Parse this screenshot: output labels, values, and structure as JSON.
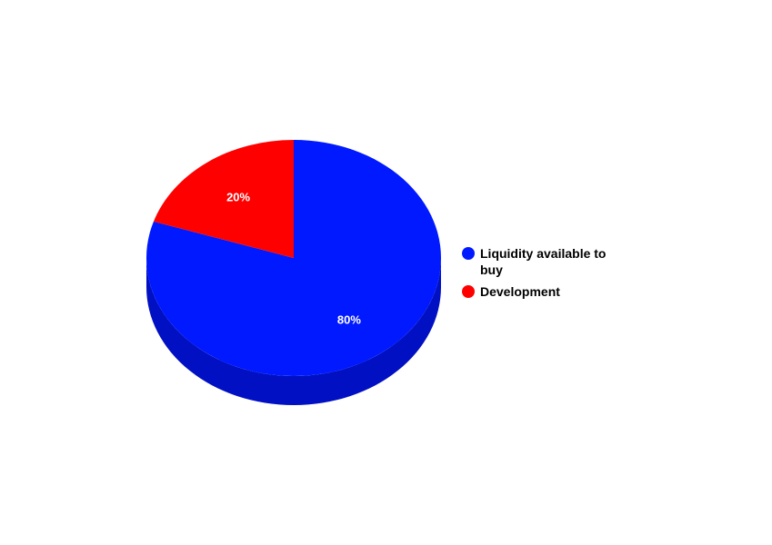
{
  "chart_data": {
    "type": "pie",
    "title": "",
    "three_d": true,
    "legend_position": "right",
    "slices": [
      {
        "name": "Liquidity available to buy",
        "value": 80,
        "label": "80%",
        "color": "#0019ff",
        "side_color": "#0010c2"
      },
      {
        "name": "Development",
        "value": 20,
        "label": "20%",
        "color": "#ff0000",
        "side_color": "#c20000"
      }
    ]
  },
  "legend": {
    "items": [
      {
        "label": "Liquidity available to buy",
        "color": "#0019ff"
      },
      {
        "label": "Development",
        "color": "#ff0000"
      }
    ]
  }
}
